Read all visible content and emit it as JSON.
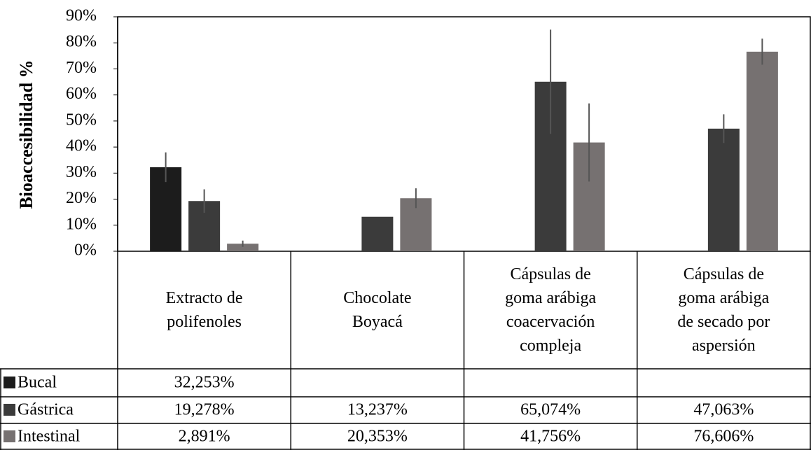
{
  "chart_data": {
    "type": "bar",
    "y_label": "Bioaccesibilidad %",
    "categories": [
      "Extracto de\npolifenoles",
      "Chocolate\nBoyacá",
      "Cápsulas de\ngoma arábiga\ncoacervación\ncompleja",
      "Cápsulas de\ngoma arábiga\nde secado por\naspersión"
    ],
    "series": [
      {
        "name": "Bucal",
        "color": "#1c1c1c",
        "values": [
          32.253,
          null,
          null,
          null
        ],
        "value_labels": [
          "32,253%",
          null,
          null,
          null
        ],
        "errors": [
          5.7,
          null,
          null,
          null
        ]
      },
      {
        "name": "Gástrica",
        "color": "#3b3b3b",
        "values": [
          19.278,
          13.237,
          65.074,
          47.063
        ],
        "value_labels": [
          "19,278%",
          "13,237%",
          "65,074%",
          "47,063%"
        ],
        "errors": [
          4.5,
          null,
          20,
          5.5
        ]
      },
      {
        "name": "Intestinal",
        "color": "#767171",
        "values": [
          2.891,
          20.353,
          41.756,
          76.606
        ],
        "value_labels": [
          "2,891%",
          "20,353%",
          "41,756%",
          "76,606%"
        ],
        "errors": [
          1.2,
          3.8,
          15,
          5
        ]
      }
    ],
    "ylim": [
      0,
      90
    ],
    "yticks": [
      {
        "value": 0,
        "label": "0%"
      },
      {
        "value": 10,
        "label": "10%"
      },
      {
        "value": 20,
        "label": "20%"
      },
      {
        "value": 30,
        "label": "30%"
      },
      {
        "value": 40,
        "label": "40%"
      },
      {
        "value": 50,
        "label": "50%"
      },
      {
        "value": 60,
        "label": "60%"
      },
      {
        "value": 70,
        "label": "70%"
      },
      {
        "value": 80,
        "label": "80%"
      },
      {
        "value": 90,
        "label": "90%"
      }
    ],
    "grid": false
  }
}
